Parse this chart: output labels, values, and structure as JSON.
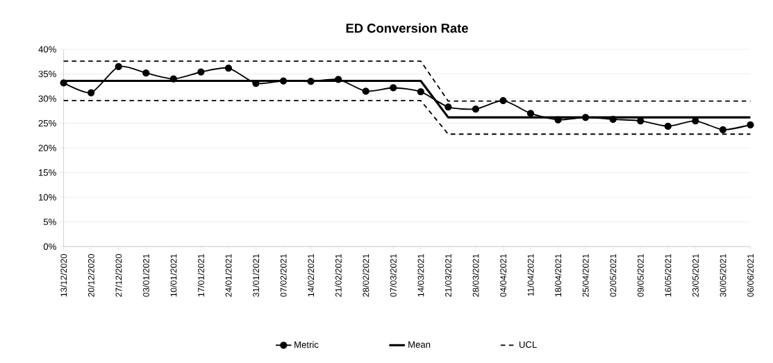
{
  "chart_data": {
    "type": "line",
    "title": "ED Conversion Rate",
    "categories": [
      "13/12/2020",
      "20/12/2020",
      "27/12/2020",
      "03/01/2021",
      "10/01/2021",
      "17/01/2021",
      "24/01/2021",
      "31/01/2021",
      "07/02/2021",
      "14/02/2021",
      "21/02/2021",
      "28/02/2021",
      "07/03/2021",
      "14/03/2021",
      "21/03/2021",
      "28/03/2021",
      "04/04/2021",
      "11/04/2021",
      "18/04/2021",
      "25/04/2021",
      "02/05/2021",
      "09/05/2021",
      "16/05/2021",
      "23/05/2021",
      "30/05/2021",
      "06/06/2021"
    ],
    "series": [
      {
        "name": "Metric",
        "color": "#000000",
        "marker": "circle",
        "line_style": "solid",
        "values": [
          33.2,
          31.2,
          36.5,
          35.2,
          34.0,
          35.4,
          36.2,
          33.1,
          33.6,
          33.5,
          33.9,
          31.5,
          32.2,
          31.4,
          28.3,
          27.9,
          29.6,
          27.0,
          25.7,
          26.2,
          25.8,
          25.5,
          24.4,
          25.5,
          23.7,
          24.7
        ]
      },
      {
        "name": "Mean",
        "color": "#000000",
        "marker": "none",
        "line_style": "solid",
        "values": [
          33.6,
          33.6,
          33.6,
          33.6,
          33.6,
          33.6,
          33.6,
          33.6,
          33.6,
          33.6,
          33.6,
          33.6,
          33.6,
          33.6,
          26.2,
          26.2,
          26.2,
          26.2,
          26.2,
          26.2,
          26.2,
          26.2,
          26.2,
          26.2,
          26.2,
          26.2
        ]
      },
      {
        "name": "UCL",
        "color": "#000000",
        "marker": "none",
        "line_style": "dashed",
        "values": [
          37.6,
          37.6,
          37.6,
          37.6,
          37.6,
          37.6,
          37.6,
          37.6,
          37.6,
          37.6,
          37.6,
          37.6,
          37.6,
          37.6,
          29.5,
          29.5,
          29.5,
          29.5,
          29.5,
          29.5,
          29.5,
          29.5,
          29.5,
          29.5,
          29.5,
          29.5
        ]
      },
      {
        "color": "#000000",
        "marker": "none",
        "line_style": "dashed",
        "values": [
          29.6,
          29.6,
          29.6,
          29.6,
          29.6,
          29.6,
          29.6,
          29.6,
          29.6,
          29.6,
          29.6,
          29.6,
          29.6,
          29.6,
          22.8,
          22.8,
          22.8,
          22.8,
          22.8,
          22.8,
          22.8,
          22.8,
          22.8,
          22.8,
          22.8,
          22.8
        ]
      }
    ],
    "ylim": [
      0,
      40
    ],
    "yticks": [
      {
        "value": 0,
        "label": "0%"
      },
      {
        "value": 5,
        "label": "5%"
      },
      {
        "value": 10,
        "label": "10%"
      },
      {
        "value": 15,
        "label": "15%"
      },
      {
        "value": 20,
        "label": "20%"
      },
      {
        "value": 25,
        "label": "25%"
      },
      {
        "value": 30,
        "label": "30%"
      },
      {
        "value": 35,
        "label": "35%"
      },
      {
        "value": 40,
        "label": "40%"
      }
    ],
    "grid": "y",
    "legend": "bottom"
  }
}
